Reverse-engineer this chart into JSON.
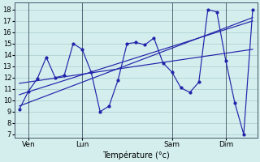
{
  "background_color": "#d4eeee",
  "grid_color": "#aacccc",
  "line_color": "#2222aa",
  "xlabel": "Température (°c)",
  "yticks": [
    7,
    8,
    9,
    10,
    11,
    12,
    13,
    14,
    15,
    16,
    17,
    18
  ],
  "ylim": [
    6.7,
    18.6
  ],
  "xlim": [
    -0.5,
    26.5
  ],
  "xtick_positions": [
    1,
    7,
    17,
    23
  ],
  "xtick_labels": [
    "Ven",
    "Lun",
    "Sam",
    "Dim"
  ],
  "vline_color": "#556677",
  "main_x": [
    0,
    1,
    2,
    3,
    4,
    5,
    6,
    7,
    8,
    9,
    10,
    11,
    12,
    13,
    14,
    15,
    16,
    17,
    18,
    19,
    20,
    21,
    22,
    23,
    24,
    25,
    26
  ],
  "main_y": [
    9.2,
    10.8,
    11.9,
    13.8,
    12.0,
    12.2,
    15.0,
    14.5,
    12.5,
    9.0,
    9.5,
    11.8,
    15.0,
    15.1,
    14.9,
    15.5,
    13.3,
    12.5,
    11.1,
    10.7,
    11.6,
    18.0,
    17.8,
    13.5,
    9.8,
    7.0,
    18.0
  ],
  "trend_lines": [
    [
      0,
      9.5,
      26,
      17.3
    ],
    [
      0,
      10.5,
      26,
      17.0
    ],
    [
      0,
      11.5,
      26,
      14.5
    ]
  ]
}
